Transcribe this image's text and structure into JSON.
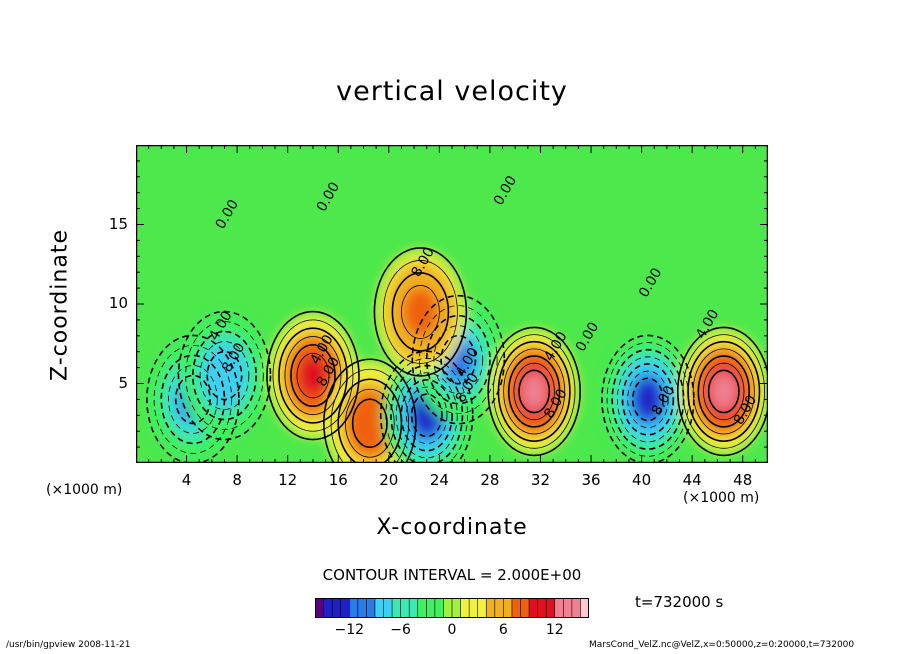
{
  "chart_data": {
    "type": "heatmap",
    "title": "vertical velocity",
    "xlabel": "X-coordinate",
    "ylabel": "Z-coordinate",
    "x_unit": "(×1000 m)",
    "x_unit_right": "(×1000 m)",
    "xlim": [
      0,
      50
    ],
    "ylim": [
      0,
      20
    ],
    "x_ticks": [
      "4",
      "8",
      "12",
      "16",
      "20",
      "24",
      "28",
      "32",
      "36",
      "40",
      "44",
      "48"
    ],
    "x_tick_values": [
      4,
      8,
      12,
      16,
      20,
      24,
      28,
      32,
      36,
      40,
      44,
      48
    ],
    "y_ticks": [
      "5",
      "10",
      "15"
    ],
    "y_tick_values": [
      5,
      10,
      15
    ],
    "contour_interval": "CONTOUR INTERVAL = 2.000E+00",
    "time": "t=732000 s",
    "colorbar": {
      "ticks": [
        "−12",
        "−6",
        "0",
        "6",
        "12"
      ],
      "tick_values": [
        -12,
        -6,
        0,
        6,
        12
      ],
      "range": [
        -16,
        16
      ],
      "colors": [
        "#5a007a",
        "#2020c8",
        "#2a7ae8",
        "#3ed0f0",
        "#3ee8b4",
        "#40f060",
        "#a0f040",
        "#f0f040",
        "#f0b020",
        "#f06010",
        "#e01020",
        "#f08090",
        "#ffc8d0"
      ]
    },
    "contour_labels": [
      "0.00",
      "0.00",
      "0.00",
      "0.00",
      "0.00",
      "4.00",
      "4.00",
      "4.00",
      "4.00",
      "4.00",
      "8.00",
      "8.00",
      "8.00",
      "8.00",
      "8.00",
      "8.00",
      "8.00"
    ],
    "cells": [
      {
        "x": 4.5,
        "z": 4,
        "value": -10
      },
      {
        "x": 7,
        "z": 5.5,
        "value": -9
      },
      {
        "x": 14,
        "z": 5.5,
        "value": 11
      },
      {
        "x": 18.5,
        "z": 2.5,
        "value": 9
      },
      {
        "x": 23,
        "z": 3,
        "value": -13
      },
      {
        "x": 25.5,
        "z": 6.5,
        "value": -10
      },
      {
        "x": 22.5,
        "z": 9.5,
        "value": 8
      },
      {
        "x": 31.5,
        "z": 4.5,
        "value": 13
      },
      {
        "x": 40.5,
        "z": 4,
        "value": -13
      },
      {
        "x": 46.5,
        "z": 4.5,
        "value": 13
      }
    ]
  },
  "footer": {
    "left": "/usr/bin/gpview  2008-11-21",
    "right": "MarsCond_VelZ.nc@VelZ,x=0:50000,z=0:20000,t=732000"
  }
}
